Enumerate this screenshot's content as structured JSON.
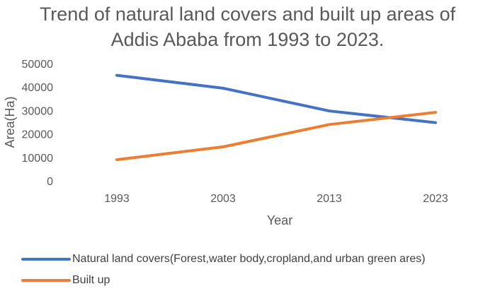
{
  "chart_data": {
    "type": "line",
    "title_line1": "Trend of natural land covers and built up areas of",
    "title_line2": "Addis Ababa from 1993 to 2023.",
    "xlabel": "Year",
    "ylabel": "Area(Ha)",
    "categories": [
      "1993",
      "2003",
      "2013",
      "2023"
    ],
    "ylim": [
      0,
      50000
    ],
    "yticks": [
      "0",
      "10000",
      "20000",
      "30000",
      "40000",
      "50000"
    ],
    "grid": false,
    "legend_position": "bottom",
    "series": [
      {
        "name": "Natural land covers(Forest,water body,cropland,and urban green ares)",
        "color": "#4472C4",
        "values": [
          45000,
          39500,
          29800,
          24800
        ]
      },
      {
        "name": "Built up",
        "color": "#ED7D31",
        "values": [
          9000,
          14500,
          24000,
          29200
        ]
      }
    ]
  }
}
